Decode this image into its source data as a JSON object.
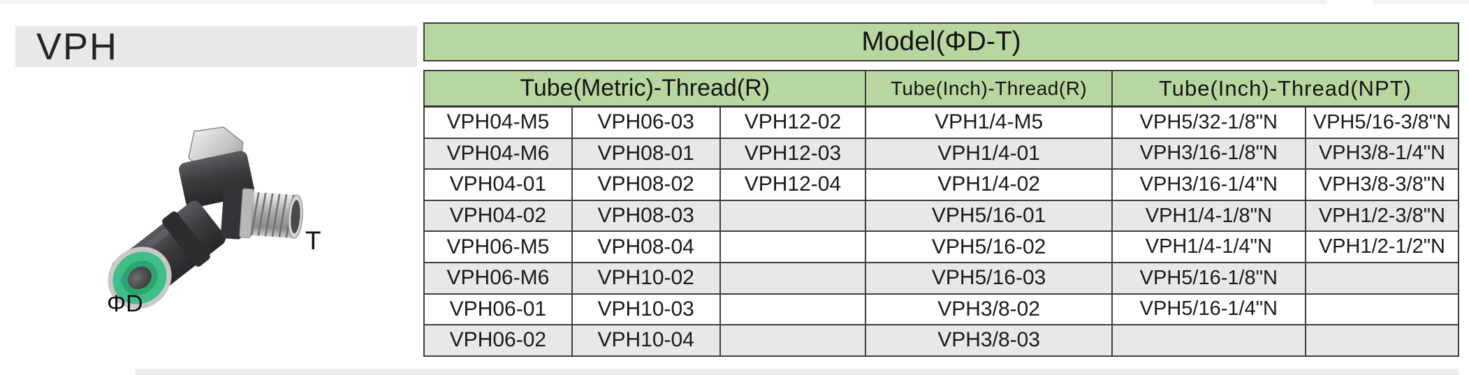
{
  "page": {
    "series_label": "VPH"
  },
  "product": {
    "image_alt": "push-in elbow fitting",
    "thread_label": "T",
    "tube_label": "ΦD"
  },
  "table": {
    "title": "Model(ΦD-T)",
    "column_groups": [
      {
        "label": "Tube(Metric)-Thread(R)",
        "span": 3
      },
      {
        "label": "Tube(Inch)-Thread(R)",
        "span": 1
      },
      {
        "label": "Tube(Inch)-Thread(NPT)",
        "span": 2
      }
    ],
    "rows": [
      [
        "VPH04-M5",
        "VPH06-03",
        "VPH12-02",
        "VPH1/4-M5",
        "VPH5/32-1/8\"N",
        "VPH5/16-3/8\"N"
      ],
      [
        "VPH04-M6",
        "VPH08-01",
        "VPH12-03",
        "VPH1/4-01",
        "VPH3/16-1/8\"N",
        "VPH3/8-1/4\"N"
      ],
      [
        "VPH04-01",
        "VPH08-02",
        "VPH12-04",
        "VPH1/4-02",
        "VPH3/16-1/4\"N",
        "VPH3/8-3/8\"N"
      ],
      [
        "VPH04-02",
        "VPH08-03",
        "",
        "VPH5/16-01",
        "VPH1/4-1/8\"N",
        "VPH1/2-3/8\"N"
      ],
      [
        "VPH06-M5",
        "VPH08-04",
        "",
        "VPH5/16-02",
        "VPH1/4-1/4\"N",
        "VPH1/2-1/2\"N"
      ],
      [
        "VPH06-M6",
        "VPH10-02",
        "",
        "VPH5/16-03",
        "VPH5/16-1/8\"N",
        ""
      ],
      [
        "VPH06-01",
        "VPH10-03",
        "",
        "VPH3/8-02",
        "VPH5/16-1/4\"N",
        ""
      ],
      [
        "VPH06-02",
        "VPH10-04",
        "",
        "VPH3/8-03",
        "",
        ""
      ]
    ]
  },
  "colors": {
    "header_green": "#b8d7a0",
    "row_alt_gray": "#e8e8e8",
    "title_bar_gray": "#e8e8e8",
    "border_dark": "#3f3f3f",
    "collet_green": "#3fbe8a"
  }
}
